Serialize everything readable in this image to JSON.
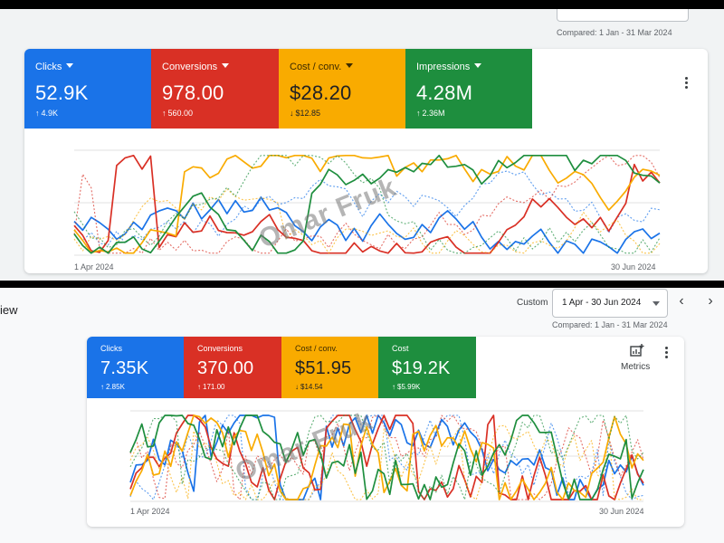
{
  "top": {
    "compared": "Compared: 1 Jan - 31 Mar 2024",
    "metrics": [
      {
        "label": "Clicks",
        "value": "52.9K",
        "delta": "4.9K",
        "direction": "up",
        "color": "#1a73e8"
      },
      {
        "label": "Conversions",
        "value": "978.00",
        "delta": "560.00",
        "direction": "up",
        "color": "#d93025"
      },
      {
        "label": "Cost / conv.",
        "value": "$28.20",
        "delta": "$12.85",
        "direction": "down",
        "color": "#f9ab00"
      },
      {
        "label": "Impressions",
        "value": "4.28M",
        "delta": "2.36M",
        "direction": "up",
        "color": "#1e8e3e"
      }
    ],
    "x_start": "1 Apr 2024",
    "x_end": "30 Jun 2024",
    "watermark": "Omar Fruk",
    "more_icon": "more-vert-icon"
  },
  "bottom": {
    "page_label": "iew",
    "custom_label": "Custom",
    "date_range": "1 Apr - 30 Jun 2024",
    "compared": "Compared: 1 Jan - 31 Mar 2024",
    "metrics": [
      {
        "label": "Clicks",
        "value": "7.35K",
        "delta": "2.85K",
        "direction": "up",
        "color": "#1a73e8"
      },
      {
        "label": "Conversions",
        "value": "370.00",
        "delta": "171.00",
        "direction": "up",
        "color": "#d93025"
      },
      {
        "label": "Cost / conv.",
        "value": "$51.95",
        "delta": "$14.54",
        "direction": "down",
        "color": "#f9ab00"
      },
      {
        "label": "Cost",
        "value": "$19.2K",
        "delta": "$5.99K",
        "direction": "up",
        "color": "#1e8e3e"
      }
    ],
    "metrics_button": "Metrics",
    "x_start": "1 Apr 2024",
    "x_end": "30 Jun 2024",
    "watermark": "Omar Fruk",
    "icons": [
      "add-chart-icon",
      "more-vert-icon",
      "chevron-left-icon",
      "chevron-right-icon",
      "dropdown-caret-icon"
    ]
  }
}
